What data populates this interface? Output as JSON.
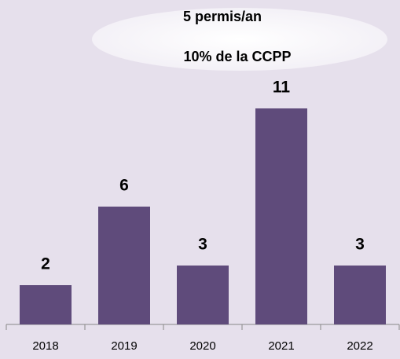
{
  "chart_data": {
    "type": "bar",
    "categories": [
      "2018",
      "2019",
      "2020",
      "2021",
      "2022"
    ],
    "values": [
      2,
      6,
      3,
      11,
      3
    ],
    "color": "#5f4b7b",
    "annotations": [
      "5 permis/an",
      "10% de la CCPP"
    ]
  }
}
